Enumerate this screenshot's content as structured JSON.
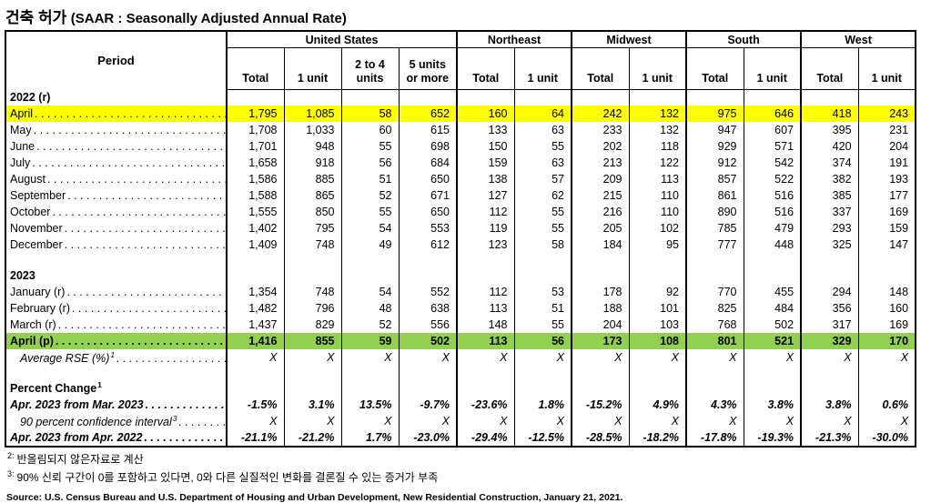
{
  "title": {
    "korean": "건축 허가",
    "english": "(SAAR : Seasonally Adjusted Annual Rate)"
  },
  "table": {
    "period_header": "Period",
    "groups": [
      {
        "label": "United States",
        "span": 4
      },
      {
        "label": "Northeast",
        "span": 2
      },
      {
        "label": "Midwest",
        "span": 2
      },
      {
        "label": "South",
        "span": 2
      },
      {
        "label": "West",
        "span": 2
      }
    ],
    "sub_headers": [
      "Total",
      "1 unit",
      "2 to 4\nunits",
      "5 units\nor more",
      "Total",
      "1 unit",
      "Total",
      "1 unit",
      "Total",
      "1 unit",
      "Total",
      "1 unit"
    ],
    "rows": [
      {
        "type": "section",
        "label": "2022 (r)"
      },
      {
        "type": "data",
        "label": "April",
        "leader": true,
        "highlight": "yellow",
        "values": [
          "1,795",
          "1,085",
          "58",
          "652",
          "160",
          "64",
          "242",
          "132",
          "975",
          "646",
          "418",
          "243"
        ]
      },
      {
        "type": "data",
        "label": "May",
        "leader": true,
        "values": [
          "1,708",
          "1,033",
          "60",
          "615",
          "133",
          "63",
          "233",
          "132",
          "947",
          "607",
          "395",
          "231"
        ]
      },
      {
        "type": "data",
        "label": "June",
        "leader": true,
        "values": [
          "1,701",
          "948",
          "55",
          "698",
          "150",
          "55",
          "202",
          "118",
          "929",
          "571",
          "420",
          "204"
        ]
      },
      {
        "type": "data",
        "label": "July",
        "leader": true,
        "values": [
          "1,658",
          "918",
          "56",
          "684",
          "159",
          "63",
          "213",
          "122",
          "912",
          "542",
          "374",
          "191"
        ]
      },
      {
        "type": "data",
        "label": "August",
        "leader": true,
        "values": [
          "1,586",
          "885",
          "51",
          "650",
          "138",
          "57",
          "209",
          "113",
          "857",
          "522",
          "382",
          "193"
        ]
      },
      {
        "type": "data",
        "label": "September",
        "leader": true,
        "values": [
          "1,588",
          "865",
          "52",
          "671",
          "127",
          "62",
          "215",
          "110",
          "861",
          "516",
          "385",
          "177"
        ]
      },
      {
        "type": "data",
        "label": "October",
        "leader": true,
        "values": [
          "1,555",
          "850",
          "55",
          "650",
          "112",
          "55",
          "216",
          "110",
          "890",
          "516",
          "337",
          "169"
        ]
      },
      {
        "type": "data",
        "label": "November",
        "leader": true,
        "values": [
          "1,402",
          "795",
          "54",
          "553",
          "119",
          "55",
          "205",
          "102",
          "785",
          "479",
          "293",
          "159"
        ]
      },
      {
        "type": "data",
        "label": "December",
        "leader": true,
        "values": [
          "1,409",
          "748",
          "49",
          "612",
          "123",
          "58",
          "184",
          "95",
          "777",
          "448",
          "325",
          "147"
        ]
      },
      {
        "type": "blank"
      },
      {
        "type": "section",
        "label": "2023"
      },
      {
        "type": "data",
        "label": "January (r)",
        "leader": true,
        "values": [
          "1,354",
          "748",
          "54",
          "552",
          "112",
          "53",
          "178",
          "92",
          "770",
          "455",
          "294",
          "148"
        ]
      },
      {
        "type": "data",
        "label": "February (r)",
        "leader": true,
        "values": [
          "1,482",
          "796",
          "48",
          "638",
          "113",
          "51",
          "188",
          "101",
          "825",
          "484",
          "356",
          "160"
        ]
      },
      {
        "type": "data",
        "label": "March (r)",
        "leader": true,
        "values": [
          "1,437",
          "829",
          "52",
          "556",
          "148",
          "55",
          "204",
          "103",
          "768",
          "502",
          "317",
          "169"
        ]
      },
      {
        "type": "data",
        "label": "April (p)",
        "leader": true,
        "highlight": "green",
        "values": [
          "1,416",
          "855",
          "59",
          "502",
          "113",
          "56",
          "173",
          "108",
          "801",
          "521",
          "329",
          "170"
        ]
      },
      {
        "type": "data",
        "label": "Average RSE (%)",
        "sup": "1",
        "leader": true,
        "style": "italic",
        "indent": true,
        "values": [
          "X",
          "X",
          "X",
          "X",
          "X",
          "X",
          "X",
          "X",
          "X",
          "X",
          "X",
          "X"
        ]
      },
      {
        "type": "blank"
      },
      {
        "type": "section",
        "label": "Percent Change",
        "sup": "1"
      },
      {
        "type": "data",
        "label": "Apr. 2023 from Mar. 2023",
        "leader": true,
        "style": "bolditalic",
        "values": [
          "-1.5%",
          "3.1%",
          "13.5%",
          "-9.7%",
          "-23.6%",
          "1.8%",
          "-15.2%",
          "4.9%",
          "4.3%",
          "3.8%",
          "3.8%",
          "0.6%"
        ]
      },
      {
        "type": "data",
        "label": "90 percent confidence interval",
        "sup": "3",
        "leader": true,
        "style": "italic",
        "indent": true,
        "values": [
          "X",
          "X",
          "X",
          "X",
          "X",
          "X",
          "X",
          "X",
          "X",
          "X",
          "X",
          "X"
        ]
      },
      {
        "type": "data",
        "label": "Apr. 2023 from Apr. 2022",
        "leader": true,
        "style": "bolditalic",
        "values": [
          "-21.1%",
          "-21.2%",
          "1.7%",
          "-23.0%",
          "-29.4%",
          "-12.5%",
          "-28.5%",
          "-18.2%",
          "-17.8%",
          "-19.3%",
          "-21.3%",
          "-30.0%"
        ]
      }
    ]
  },
  "footnotes": [
    {
      "marker": "2:",
      "text": "반올림되지 않은자료로 계산"
    },
    {
      "marker": "3:",
      "text": "90% 신뢰 구간이 0를 포함하고 있다면, 0와 다른 실질적인 변화를 결론질 수 있는 증거가 부족"
    }
  ],
  "source": "Source: U.S. Census Bureau and U.S. Department of Housing and Urban Development, New Residential Construction, January 21, 2021.",
  "colors": {
    "highlight_yellow": "#FFFF00",
    "highlight_green": "#92D050",
    "border": "#000000"
  }
}
